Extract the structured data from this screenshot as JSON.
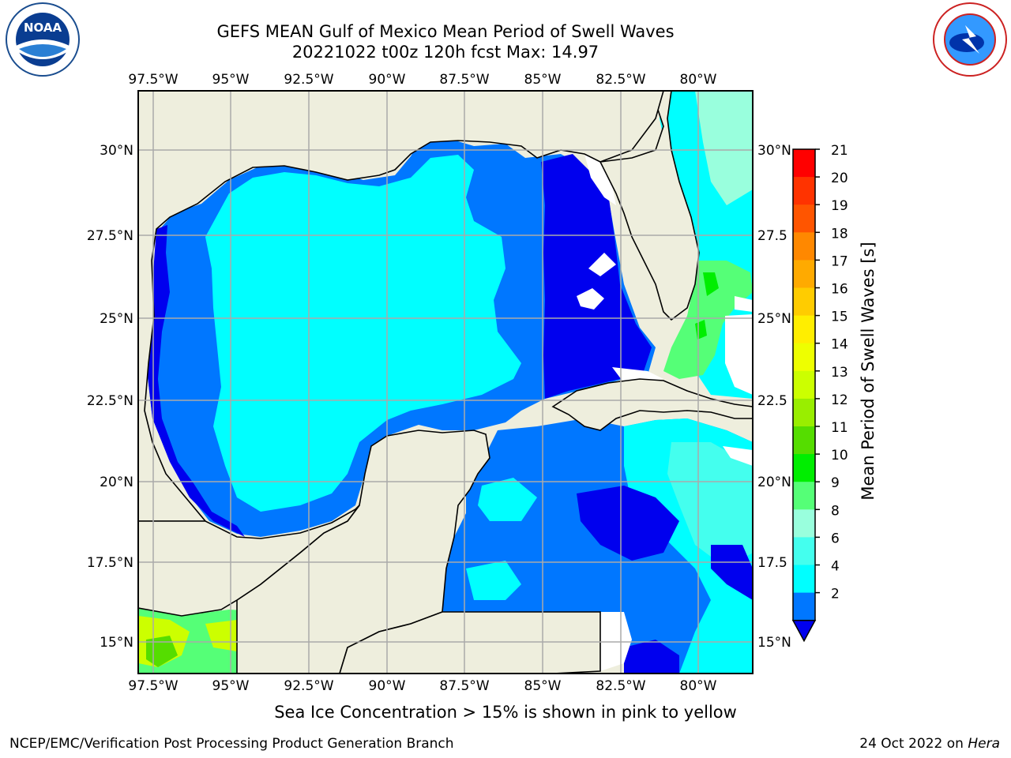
{
  "title": {
    "line1": "GEFS MEAN Gulf of Mexico Mean Period of Swell Waves",
    "line2": "20221022 t00z 120h fcst   Max: 14.97"
  },
  "logos": {
    "left": "noaa-logo",
    "right": "nws-logo"
  },
  "map": {
    "lon_labels": [
      "97.5°W",
      "95°W",
      "92.5°W",
      "90°W",
      "87.5°W",
      "85°W",
      "82.5°W",
      "80°W"
    ],
    "lat_labels": [
      "30°N",
      "27.5°N",
      "25°N",
      "22.5°N",
      "20°N",
      "17.5°N",
      "15°N"
    ],
    "lat_labels_right": [
      "30°N",
      "27.5",
      "25°N",
      "22.5",
      "20°N",
      "17.5",
      "15°N"
    ],
    "lon_range": [
      "98°W",
      "79.1°W"
    ],
    "lat_range": [
      "14°N",
      "31.9°N"
    ],
    "land_color": "#eeeedd",
    "gridlines": true,
    "max": 14.97
  },
  "colorbar": {
    "label": "Mean Period of Swell Waves [s]",
    "ticks": [
      "21",
      "20",
      "19",
      "18",
      "17",
      "16",
      "15",
      "14",
      "13",
      "12",
      "11",
      "10",
      "9",
      "8",
      "6",
      "4",
      "2"
    ],
    "colors": [
      "#ff0000",
      "#ff3300",
      "#ff5500",
      "#ff8800",
      "#ffaa00",
      "#ffcc00",
      "#ffee00",
      "#eeff00",
      "#ccff00",
      "#99ee00",
      "#55dd00",
      "#00ee00",
      "#55ff77",
      "#99ffdd",
      "#44ffee",
      "#00ffff",
      "#0077ff"
    ],
    "extend_color": "#0000ee"
  },
  "note": "Sea Ice Concentration > 15% is shown in pink to yellow",
  "footer": {
    "left": "NCEP/EMC/Verification Post Processing Product Generation Branch",
    "date": "24 Oct 2022 on",
    "host": "Hera"
  }
}
